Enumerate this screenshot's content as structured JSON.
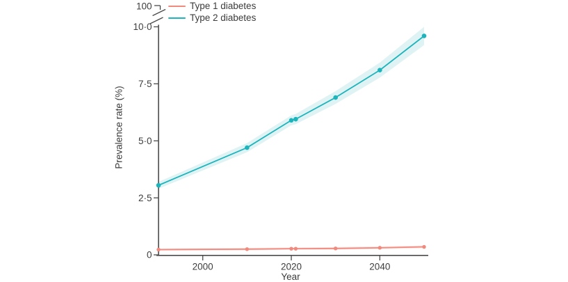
{
  "figure_type": "line-chart-figure",
  "legend": {
    "items": [
      {
        "label": "Type 1 diabetes",
        "color": "#f0897e"
      },
      {
        "label": "Type 2 diabetes",
        "color": "#1db4bb"
      }
    ]
  },
  "axes": {
    "y_label": "Prevalence rate (%)",
    "x_label": "Year",
    "y_break_top_label": "100",
    "y_tick_labels": [
      "0",
      "2·5",
      "5·0",
      "7·5",
      "10·0"
    ],
    "y_tick_values": [
      0,
      2.5,
      5.0,
      7.5,
      10.0
    ],
    "x_tick_labels": [
      "2000",
      "2020",
      "2040"
    ],
    "x_tick_values": [
      2000,
      2020,
      2040
    ],
    "axis_color": "#4a4a4a",
    "text_color": "#3d3d3d"
  },
  "chart_data": {
    "type": "line",
    "title": "",
    "xlabel": "Year",
    "ylabel": "Prevalence rate (%)",
    "xlim": [
      1990,
      2050
    ],
    "ylim": [
      0,
      10
    ],
    "y_axis_break": {
      "shown": true,
      "top_value_label": "100"
    },
    "grid": false,
    "legend_position": "top-left",
    "x": [
      1990,
      2010,
      2020,
      2021,
      2030,
      2040,
      2050
    ],
    "series": [
      {
        "name": "Type 1 diabetes",
        "color": "#f0897e",
        "band_color": "#fce5e2",
        "values": [
          0.23,
          0.25,
          0.27,
          0.27,
          0.28,
          0.31,
          0.35
        ],
        "ci_lower": [
          0.18,
          0.2,
          0.22,
          0.22,
          0.23,
          0.26,
          0.29
        ],
        "ci_upper": [
          0.28,
          0.3,
          0.32,
          0.32,
          0.34,
          0.37,
          0.41
        ],
        "marker_radius": 2.7
      },
      {
        "name": "Type 2 diabetes",
        "color": "#1db4bb",
        "band_color": "#e0f3f4",
        "values": [
          3.05,
          4.7,
          5.9,
          5.95,
          6.9,
          8.1,
          9.6
        ],
        "ci_lower": [
          2.9,
          4.5,
          5.68,
          5.73,
          6.62,
          7.77,
          9.2
        ],
        "ci_upper": [
          3.2,
          4.9,
          6.12,
          6.18,
          7.18,
          8.43,
          10.0
        ],
        "marker_radius": 3.3
      }
    ]
  }
}
